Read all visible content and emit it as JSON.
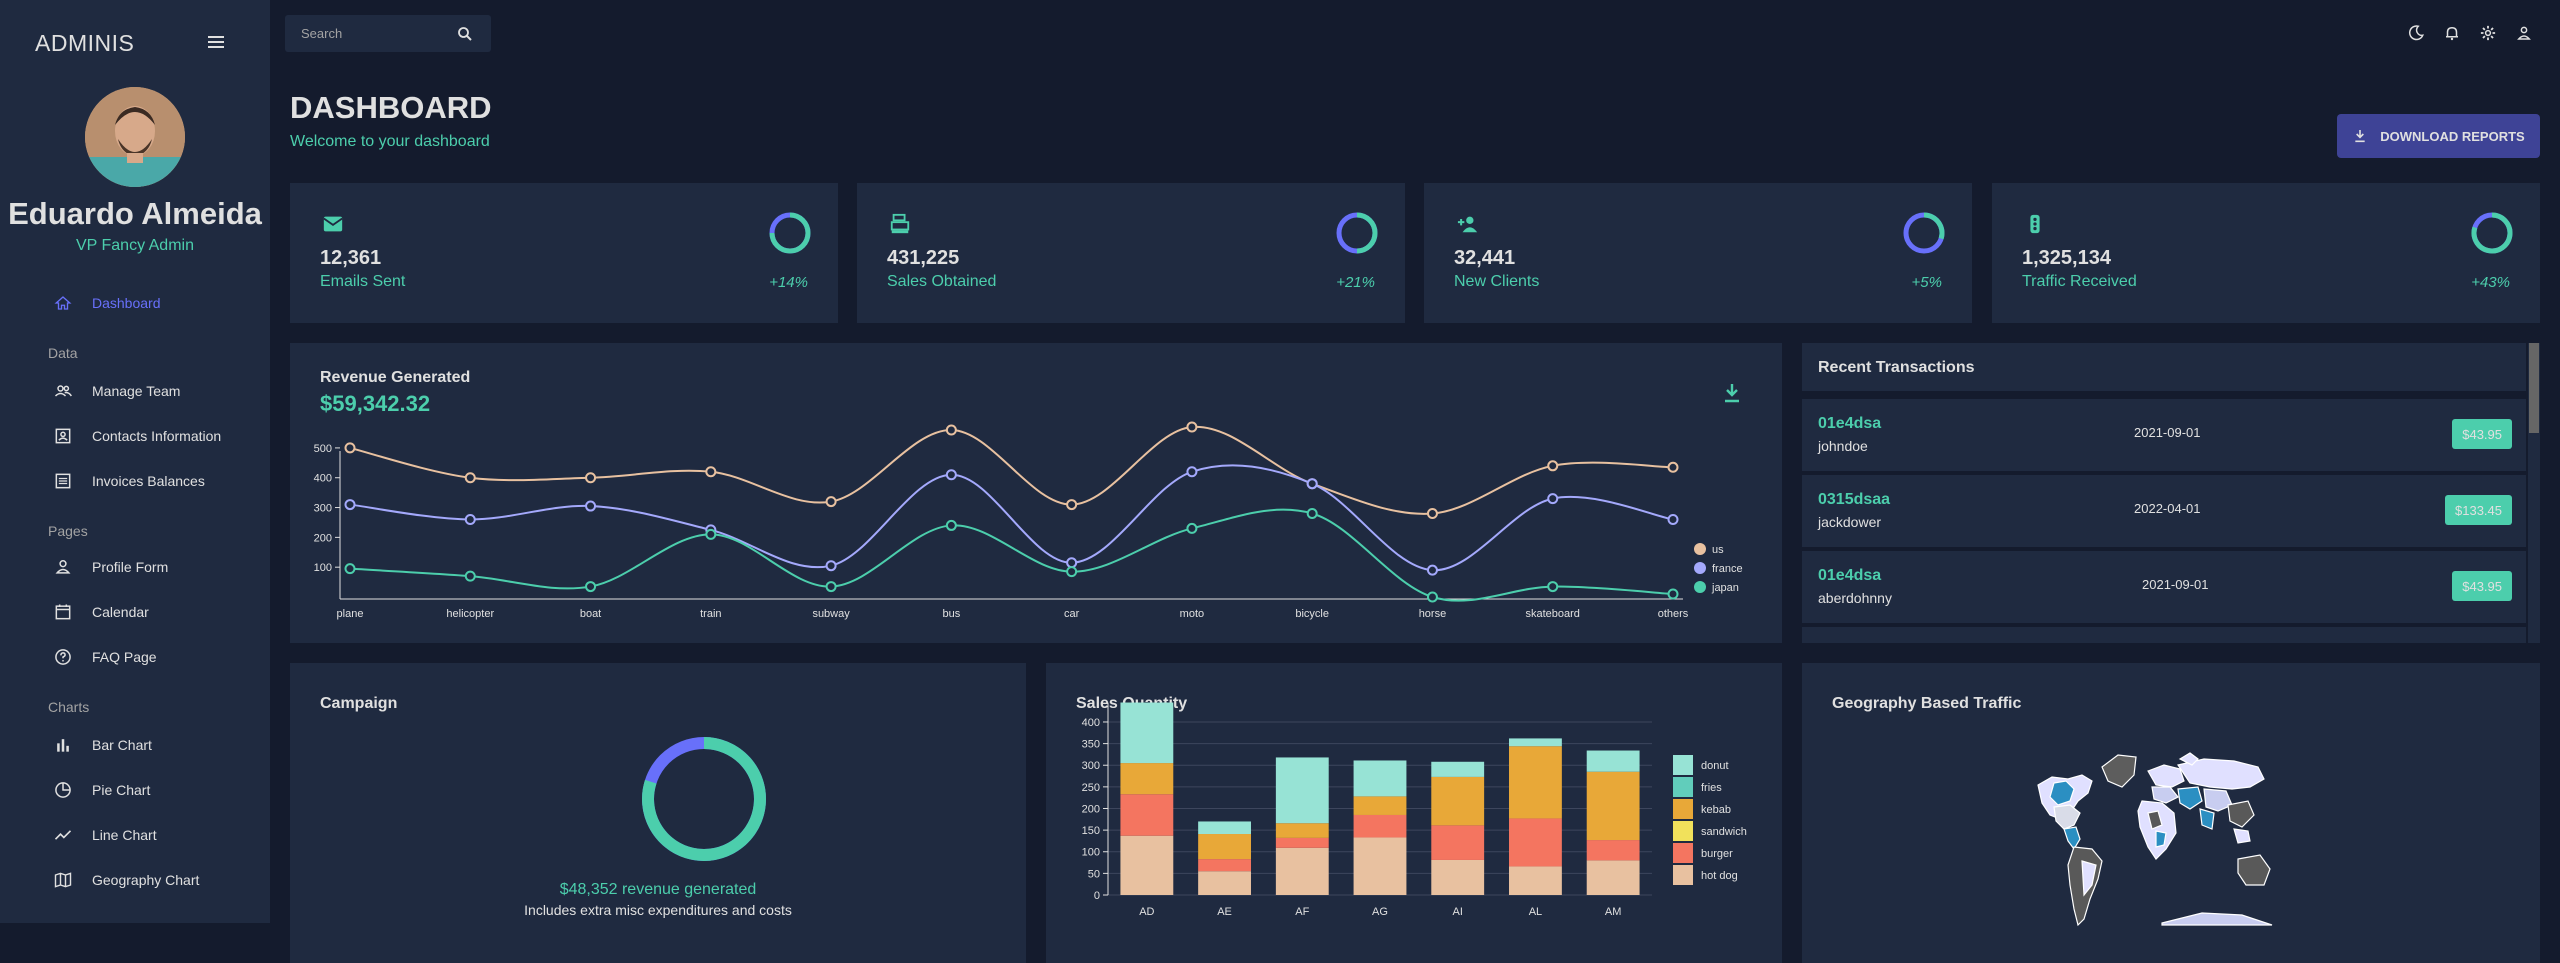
{
  "brand": "ADMINIS",
  "user": {
    "name": "Eduardo Almeida",
    "role": "VP Fancy Admin"
  },
  "sidebar": {
    "items": [
      {
        "label": "Dashboard",
        "icon": "home-icon"
      },
      {
        "label": "Manage Team",
        "icon": "people-icon"
      },
      {
        "label": "Contacts Information",
        "icon": "contacts-icon"
      },
      {
        "label": "Invoices Balances",
        "icon": "receipt-icon"
      },
      {
        "label": "Profile Form",
        "icon": "person-icon"
      },
      {
        "label": "Calendar",
        "icon": "calendar-icon"
      },
      {
        "label": "FAQ Page",
        "icon": "help-icon"
      },
      {
        "label": "Bar Chart",
        "icon": "bar-chart-icon"
      },
      {
        "label": "Pie Chart",
        "icon": "pie-chart-icon"
      },
      {
        "label": "Line Chart",
        "icon": "line-chart-icon"
      },
      {
        "label": "Geography Chart",
        "icon": "map-icon"
      }
    ],
    "sections": [
      "Data",
      "Pages",
      "Charts"
    ]
  },
  "search": {
    "placeholder": "Search"
  },
  "header": {
    "title": "DASHBOARD",
    "subtitle": "Welcome to your dashboard",
    "download_label": "DOWNLOAD REPORTS"
  },
  "stats": [
    {
      "value": "12,361",
      "label": "Emails Sent",
      "increase": "+14%",
      "progress": 0.75,
      "icon": "email-icon"
    },
    {
      "value": "431,225",
      "label": "Sales Obtained",
      "increase": "+21%",
      "progress": 0.5,
      "icon": "point-of-sale-icon"
    },
    {
      "value": "32,441",
      "label": "New Clients",
      "increase": "+5%",
      "progress": 0.3,
      "icon": "person-add-icon"
    },
    {
      "value": "1,325,134",
      "label": "Traffic Received",
      "increase": "+43%",
      "progress": 0.8,
      "icon": "traffic-icon"
    }
  ],
  "revenue": {
    "title": "Revenue Generated",
    "amount": "$59,342.32"
  },
  "transactions": {
    "title": "Recent Transactions",
    "rows": [
      {
        "id": "01e4dsa",
        "user": "johndoe",
        "date": "2021-09-01",
        "cost": "$43.95"
      },
      {
        "id": "0315dsaa",
        "user": "jackdower",
        "date": "2022-04-01",
        "cost": "$133.45"
      },
      {
        "id": "01e4dsa",
        "user": "aberdohnny",
        "date": "2021-09-01",
        "cost": "$43.95"
      }
    ]
  },
  "campaign": {
    "title": "Campaign",
    "revenue": "$48,352 revenue generated",
    "note": "Includes extra misc expenditures and costs",
    "progress": 0.8
  },
  "sales": {
    "title": "Sales Quantity"
  },
  "geo": {
    "title": "Geography Based Traffic"
  },
  "colors": {
    "accent": "#4cceac",
    "primary": "#1f2a40",
    "bg": "#141b2d",
    "blue": "#6870fa",
    "button": "#3e4396"
  },
  "chart_data": [
    {
      "type": "line",
      "title": "Revenue Generated",
      "categories": [
        "plane",
        "helicopter",
        "boat",
        "train",
        "subway",
        "bus",
        "car",
        "moto",
        "bicycle",
        "horse",
        "skateboard",
        "others"
      ],
      "ylim": [
        0,
        550
      ],
      "yticks": [
        100,
        200,
        300,
        400,
        500
      ],
      "legend": "bottom-right",
      "series": [
        {
          "name": "us",
          "color": "#e8c1a0",
          "values": [
            500,
            400,
            400,
            420,
            320,
            560,
            310,
            570,
            380,
            280,
            440,
            435
          ]
        },
        {
          "name": "france",
          "color": "#a4a9fc",
          "values": [
            310,
            260,
            305,
            225,
            105,
            410,
            115,
            420,
            380,
            90,
            330,
            260
          ]
        },
        {
          "name": "japan",
          "color": "#4cceac",
          "values": [
            95,
            70,
            35,
            210,
            35,
            240,
            85,
            230,
            280,
            0,
            35,
            10
          ]
        }
      ]
    },
    {
      "type": "bar",
      "title": "Sales Quantity",
      "stacked": true,
      "categories": [
        "AD",
        "AE",
        "AF",
        "AG",
        "AI",
        "AL",
        "AM"
      ],
      "ylim": [
        0,
        430
      ],
      "yticks": [
        0,
        50,
        100,
        150,
        200,
        250,
        300,
        350,
        400
      ],
      "legend": "right",
      "series": [
        {
          "name": "hot dog",
          "color": "#e8c1a0",
          "values": [
            137,
            55,
            109,
            133,
            81,
            66,
            80
          ]
        },
        {
          "name": "burger",
          "color": "#f47560",
          "values": [
            96,
            28,
            23,
            52,
            80,
            111,
            47
          ]
        },
        {
          "name": "sandwich",
          "color": "#f1e15b",
          "values": [
            0,
            0,
            0,
            0,
            0,
            0,
            0
          ]
        },
        {
          "name": "kebab",
          "color": "#e8a838",
          "values": [
            72,
            58,
            34,
            43,
            112,
            167,
            158
          ]
        },
        {
          "name": "fries",
          "color": "#61cdbb",
          "values": [
            0,
            0,
            0,
            0,
            0,
            0,
            0
          ]
        },
        {
          "name": "donut",
          "color": "#97e3d5",
          "values": [
            140,
            29,
            152,
            83,
            35,
            18,
            49
          ]
        }
      ]
    }
  ]
}
